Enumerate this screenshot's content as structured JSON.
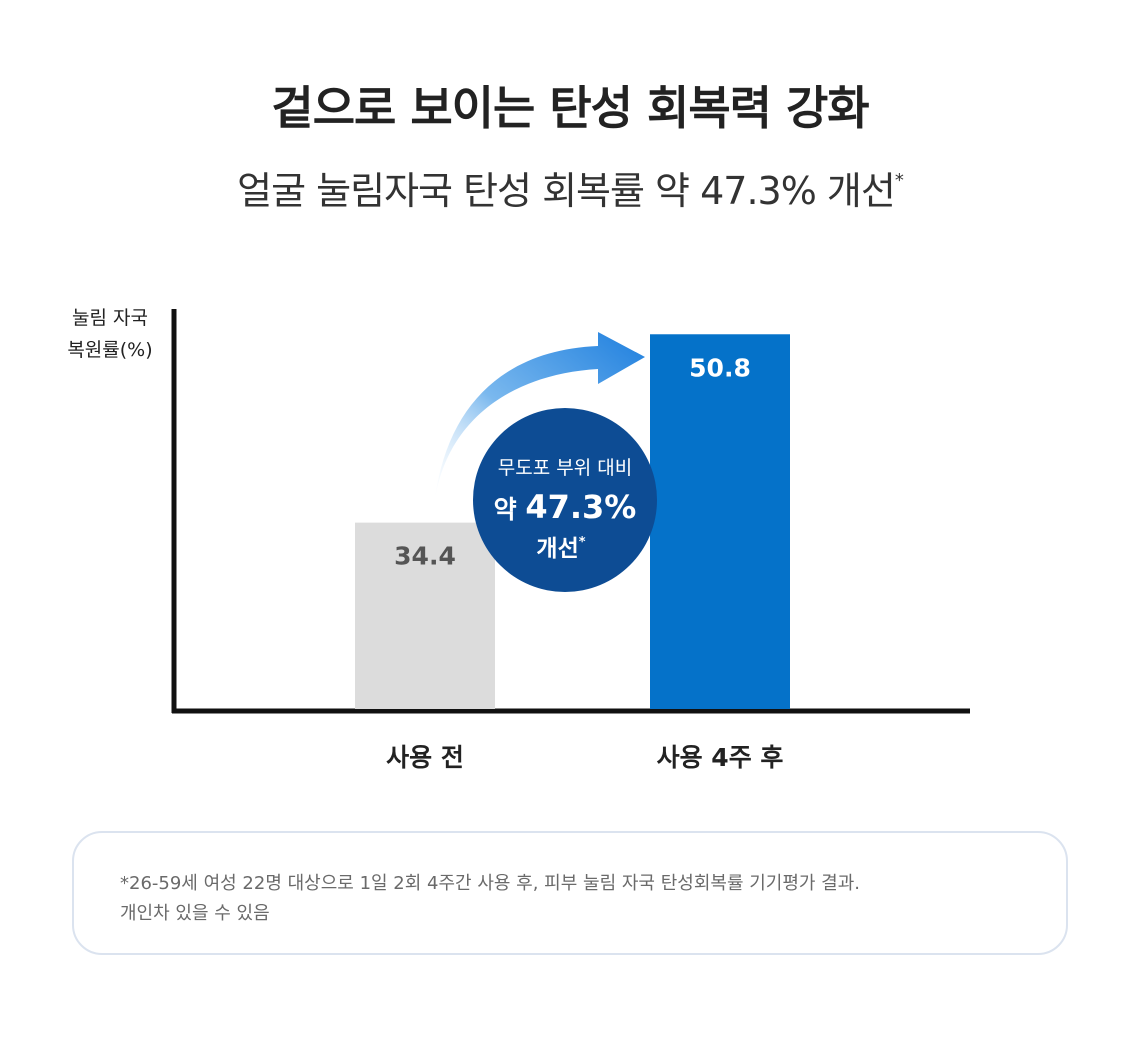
{
  "header": {
    "title": "겉으로 보이는 탄성 회복력 강화",
    "subtitle": "얼굴 눌림자국 탄성 회복률 약 47.3% 개선",
    "subtitle_mark": "*"
  },
  "chart_data": {
    "type": "bar",
    "ylabel": [
      "눌림 자국",
      "복원률(%)"
    ],
    "categories": [
      "사용 전",
      "사용 4주 후"
    ],
    "values": [
      34.4,
      50.8
    ],
    "value_labels": [
      "34.4",
      "50.8"
    ],
    "colors": [
      "#dcdcdc",
      "#0572c9"
    ],
    "value_label_colors": [
      "#555555",
      "#ffffff"
    ],
    "ylim": [
      18,
      53
    ],
    "grid": false,
    "legend": "none",
    "annotation": {
      "line1": "무도포 부위 대비",
      "line2_prefix": "약",
      "line2_value": "47.3%",
      "line3": "개선",
      "mark": "*",
      "circle_color": "#0d4c94",
      "arrow_color": "#2a8be0"
    }
  },
  "footnote": {
    "line1": "*26-59세 여성 22명 대상으로 1일 2회 4주간 사용 후, 피부 눌림 자국 탄성회복률 기기평가 결과.",
    "line2": "개인차 있을 수 있음"
  }
}
